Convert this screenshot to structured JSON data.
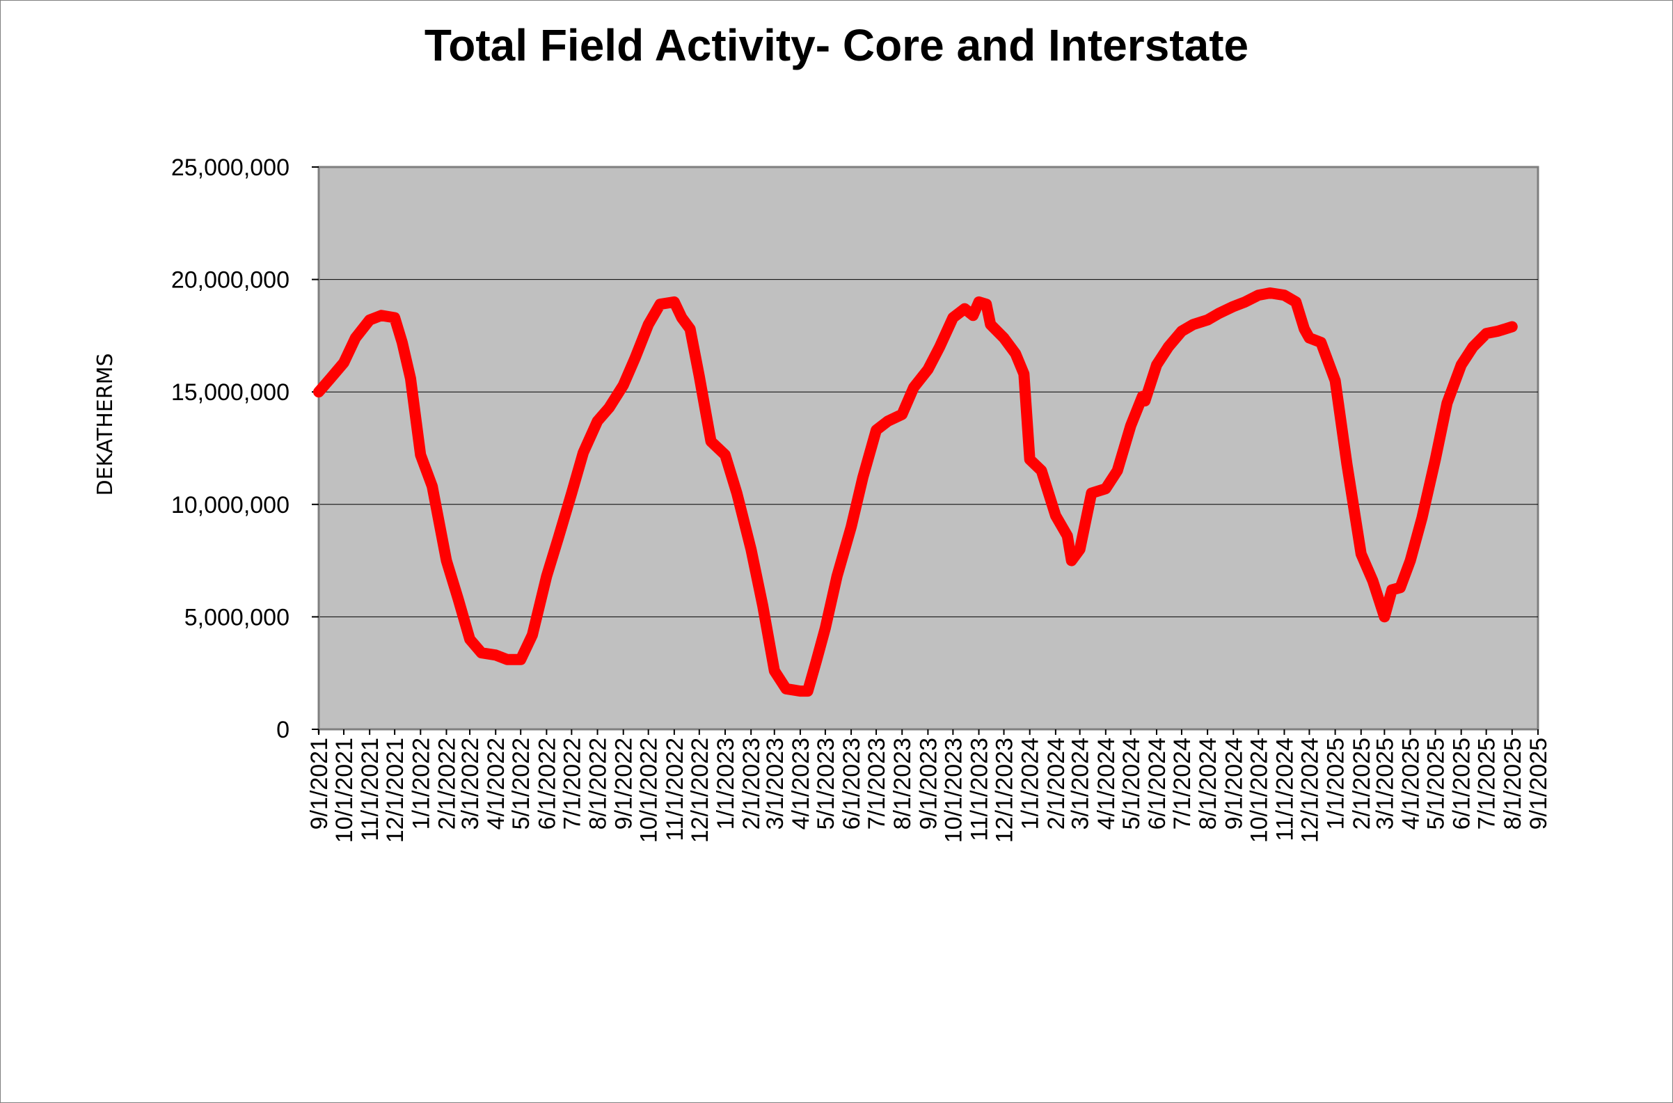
{
  "chart_data": {
    "type": "line",
    "title": "Total Field Activity- Core and Interstate",
    "ylabel": "DEKATHERMS",
    "xlabel": "",
    "ylim": [
      0,
      25000000
    ],
    "y_ticks": [
      0,
      5000000,
      10000000,
      15000000,
      20000000,
      25000000
    ],
    "y_tick_labels": [
      "0",
      "5,000,000",
      "10,000,000",
      "15,000,000",
      "20,000,000",
      "25,000,000"
    ],
    "x_tick_labels": [
      "9/1/2021",
      "10/1/2021",
      "11/1/2021",
      "12/1/2021",
      "1/1/2022",
      "2/1/2022",
      "3/1/2022",
      "4/1/2022",
      "5/1/2022",
      "6/1/2022",
      "7/1/2022",
      "8/1/2022",
      "9/1/2022",
      "10/1/2022",
      "11/1/2022",
      "12/1/2022",
      "1/1/2023",
      "2/1/2023",
      "3/1/2023",
      "4/1/2023",
      "5/1/2023",
      "6/1/2023",
      "7/1/2023",
      "8/1/2023",
      "9/1/2023",
      "10/1/2023",
      "11/1/2023",
      "12/1/2023",
      "1/1/2024",
      "2/1/2024",
      "3/1/2024",
      "4/1/2024",
      "5/1/2024",
      "6/1/2024",
      "7/1/2024",
      "8/1/2024",
      "9/1/2024",
      "10/1/2024",
      "11/1/2024",
      "12/1/2024",
      "1/1/2025",
      "2/1/2025",
      "3/1/2025",
      "4/1/2025",
      "5/1/2025",
      "6/1/2025",
      "7/1/2025",
      "8/1/2025",
      "9/1/2025"
    ],
    "grid": "horizontal",
    "plot_background": "#c0c0c0",
    "line_color": "#ff0000",
    "series": [
      {
        "points": [
          [
            "9/1/2021",
            15000000
          ],
          [
            "9/15/2021",
            15600000
          ],
          [
            "10/1/2021",
            16300000
          ],
          [
            "10/15/2021",
            17400000
          ],
          [
            "11/1/2021",
            18200000
          ],
          [
            "11/15/2021",
            18400000
          ],
          [
            "12/1/2021",
            18300000
          ],
          [
            "12/10/2021",
            17200000
          ],
          [
            "12/20/2021",
            15600000
          ],
          [
            "1/1/2022",
            12200000
          ],
          [
            "1/15/2022",
            10800000
          ],
          [
            "2/1/2022",
            7500000
          ],
          [
            "2/15/2022",
            5800000
          ],
          [
            "3/1/2022",
            4000000
          ],
          [
            "3/15/2022",
            3400000
          ],
          [
            "4/1/2022",
            3300000
          ],
          [
            "4/15/2022",
            3100000
          ],
          [
            "5/1/2022",
            3100000
          ],
          [
            "5/15/2022",
            4200000
          ],
          [
            "6/1/2022",
            6800000
          ],
          [
            "6/15/2022",
            8500000
          ],
          [
            "7/1/2022",
            10500000
          ],
          [
            "7/15/2022",
            12300000
          ],
          [
            "8/1/2022",
            13700000
          ],
          [
            "8/15/2022",
            14300000
          ],
          [
            "9/1/2022",
            15300000
          ],
          [
            "9/15/2022",
            16500000
          ],
          [
            "10/1/2022",
            18000000
          ],
          [
            "10/15/2022",
            18900000
          ],
          [
            "11/1/2022",
            19000000
          ],
          [
            "11/10/2022",
            18300000
          ],
          [
            "11/20/2022",
            17800000
          ],
          [
            "12/1/2022",
            15700000
          ],
          [
            "12/15/2022",
            12800000
          ],
          [
            "1/1/2023",
            12200000
          ],
          [
            "1/15/2023",
            10500000
          ],
          [
            "2/1/2023",
            8000000
          ],
          [
            "2/15/2023",
            5500000
          ],
          [
            "3/1/2023",
            2600000
          ],
          [
            "3/15/2023",
            1800000
          ],
          [
            "4/1/2023",
            1700000
          ],
          [
            "4/10/2023",
            1700000
          ],
          [
            "4/20/2023",
            3000000
          ],
          [
            "5/1/2023",
            4500000
          ],
          [
            "5/15/2023",
            6800000
          ],
          [
            "6/1/2023",
            9000000
          ],
          [
            "6/15/2023",
            11200000
          ],
          [
            "7/1/2023",
            13300000
          ],
          [
            "7/15/2023",
            13700000
          ],
          [
            "8/1/2023",
            14000000
          ],
          [
            "8/15/2023",
            15200000
          ],
          [
            "9/1/2023",
            16000000
          ],
          [
            "9/15/2023",
            17000000
          ],
          [
            "10/1/2023",
            18300000
          ],
          [
            "10/15/2023",
            18700000
          ],
          [
            "10/25/2023",
            18400000
          ],
          [
            "11/1/2023",
            19000000
          ],
          [
            "11/10/2023",
            18900000
          ],
          [
            "11/15/2023",
            18000000
          ],
          [
            "12/1/2023",
            17400000
          ],
          [
            "12/15/2023",
            16700000
          ],
          [
            "12/25/2023",
            15800000
          ],
          [
            "1/1/2024",
            12000000
          ],
          [
            "1/15/2024",
            11500000
          ],
          [
            "2/1/2024",
            9500000
          ],
          [
            "2/15/2024",
            8600000
          ],
          [
            "2/20/2024",
            7500000
          ],
          [
            "3/1/2024",
            8000000
          ],
          [
            "3/15/2024",
            10500000
          ],
          [
            "4/1/2024",
            10700000
          ],
          [
            "4/15/2024",
            11500000
          ],
          [
            "5/1/2024",
            13500000
          ],
          [
            "5/15/2024",
            14800000
          ],
          [
            "5/18/2024",
            14600000
          ],
          [
            "6/1/2024",
            16200000
          ],
          [
            "6/15/2024",
            17000000
          ],
          [
            "7/1/2024",
            17700000
          ],
          [
            "7/15/2024",
            18000000
          ],
          [
            "8/1/2024",
            18200000
          ],
          [
            "8/15/2024",
            18500000
          ],
          [
            "9/1/2024",
            18800000
          ],
          [
            "9/15/2024",
            19000000
          ],
          [
            "10/1/2024",
            19300000
          ],
          [
            "10/15/2024",
            19400000
          ],
          [
            "11/1/2024",
            19300000
          ],
          [
            "11/15/2024",
            19000000
          ],
          [
            "11/25/2024",
            17800000
          ],
          [
            "12/1/2024",
            17400000
          ],
          [
            "12/15/2024",
            17200000
          ],
          [
            "1/1/2025",
            15500000
          ],
          [
            "1/15/2025",
            11800000
          ],
          [
            "2/1/2025",
            7800000
          ],
          [
            "2/15/2025",
            6600000
          ],
          [
            "3/1/2025",
            5000000
          ],
          [
            "3/10/2025",
            6200000
          ],
          [
            "3/20/2025",
            6300000
          ],
          [
            "4/1/2025",
            7500000
          ],
          [
            "4/15/2025",
            9400000
          ],
          [
            "5/1/2025",
            12000000
          ],
          [
            "5/15/2025",
            14500000
          ],
          [
            "6/1/2025",
            16200000
          ],
          [
            "6/15/2025",
            17000000
          ],
          [
            "7/1/2025",
            17600000
          ],
          [
            "7/15/2025",
            17700000
          ],
          [
            "8/1/2025",
            17900000
          ]
        ]
      }
    ]
  }
}
